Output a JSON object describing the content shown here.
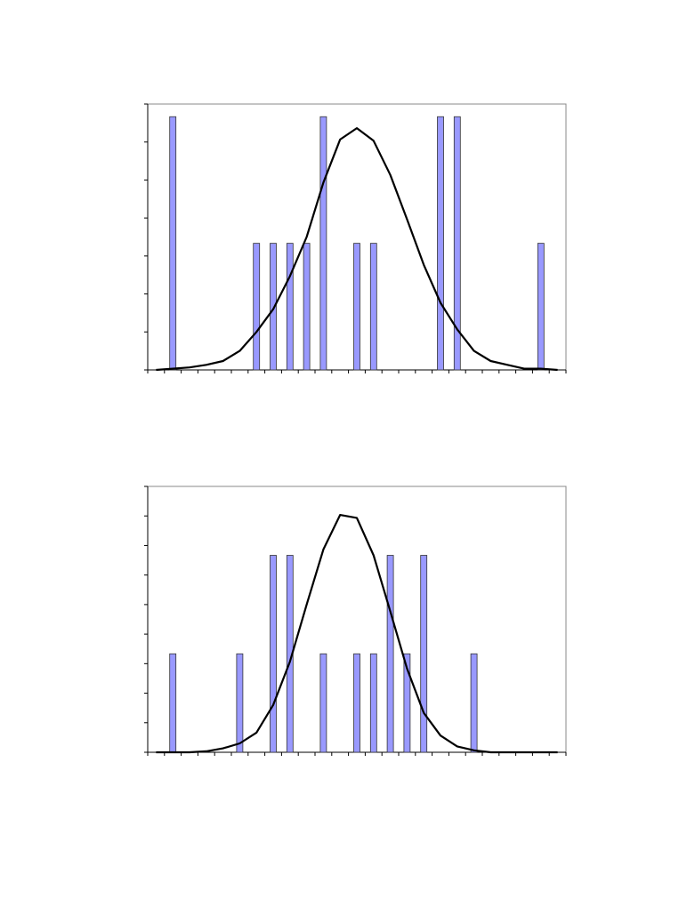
{
  "chart_data": [
    {
      "type": "bar",
      "categories": [
        null,
        null,
        null,
        null,
        null,
        null,
        null,
        null,
        null,
        null,
        null,
        null,
        null,
        null,
        null,
        null,
        null,
        null,
        null,
        null,
        null,
        null,
        null,
        null,
        null
      ],
      "series": [
        {
          "type": "bar",
          "color": "#9999ff",
          "values": [
            0,
            2,
            0,
            0,
            0,
            0,
            1,
            1,
            1,
            1,
            2,
            0,
            1,
            1,
            0,
            0,
            0,
            2,
            2,
            0,
            0,
            0,
            0,
            1,
            0
          ]
        },
        {
          "type": "line",
          "color": "#000000",
          "values": [
            0,
            0.01,
            0.02,
            0.04,
            0.07,
            0.15,
            0.3,
            0.48,
            0.74,
            1.05,
            1.48,
            1.82,
            1.91,
            1.81,
            1.54,
            1.19,
            0.83,
            0.53,
            0.32,
            0.15,
            0.07,
            0.04,
            0.01,
            0.01,
            0
          ]
        }
      ],
      "ylim": [
        0,
        2.1
      ],
      "yticks": [
        0,
        0.3,
        0.6,
        0.9,
        1.2,
        1.5,
        1.8,
        2.1
      ]
    },
    {
      "type": "bar",
      "categories": [
        null,
        null,
        null,
        null,
        null,
        null,
        null,
        null,
        null,
        null,
        null,
        null,
        null,
        null,
        null,
        null,
        null,
        null,
        null,
        null,
        null,
        null,
        null,
        null,
        null
      ],
      "series": [
        {
          "type": "bar",
          "color": "#9999ff",
          "values": [
            0,
            1,
            0,
            0,
            0,
            1,
            0,
            2,
            2,
            0,
            1,
            0,
            1,
            1,
            2,
            1,
            2,
            0,
            0,
            1,
            0,
            0,
            0,
            0,
            0
          ]
        },
        {
          "type": "line",
          "color": "#000000",
          "values": [
            0,
            0,
            0,
            0.01,
            0.04,
            0.09,
            0.2,
            0.48,
            0.92,
            1.5,
            2.06,
            2.41,
            2.38,
            2,
            1.43,
            0.85,
            0.4,
            0.17,
            0.06,
            0.02,
            0,
            0,
            0,
            0,
            0
          ]
        }
      ],
      "ylim": [
        0,
        2.7
      ],
      "yticks": [
        0,
        0.3,
        0.6,
        0.9,
        1.2,
        1.5,
        1.8,
        2.1,
        2.4,
        2.7
      ]
    }
  ]
}
